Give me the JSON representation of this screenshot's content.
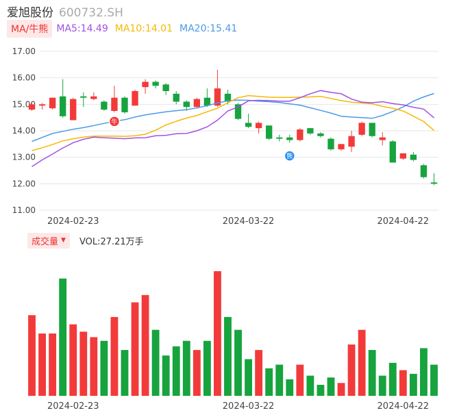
{
  "header": {
    "name": "爱旭股份",
    "code": "600732.SH"
  },
  "ma_bar": {
    "button_label": "MA/牛熊",
    "items": [
      {
        "label": "MA5:14.49",
        "color": "#a050e6"
      },
      {
        "label": "MA10:14.01",
        "color": "#f5b800"
      },
      {
        "label": "MA20:15.41",
        "color": "#4a9ae8"
      }
    ]
  },
  "volume_bar": {
    "button_label": "成交量",
    "caret": "▼",
    "value_text": "VOL:27.21万手"
  },
  "colors": {
    "up": "#f33a3a",
    "down": "#17a33e",
    "ma5": "#a050e6",
    "ma10": "#f5b800",
    "ma20": "#4a9ae8",
    "grid": "#e6e6e6"
  },
  "chart_data": [
    {
      "type": "candlestick",
      "ylim": [
        11.0,
        17.0
      ],
      "yticks": [
        "17.00",
        "16.00",
        "15.00",
        "14.00",
        "13.00",
        "12.00",
        "11.00"
      ],
      "xticks": [
        {
          "index": 4,
          "label": "2024-02-23"
        },
        {
          "index": 21,
          "label": "2024-03-22"
        },
        {
          "index": 36,
          "label": "2024-04-22"
        }
      ],
      "markers": [
        {
          "index": 8,
          "label": "牛",
          "color": "#f33a3a"
        },
        {
          "index": 25,
          "label": "熊",
          "color": "#2b8ff0"
        }
      ],
      "candles": [
        {
          "o": 14.8,
          "c": 15.0,
          "h": 15.05,
          "l": 14.75
        },
        {
          "o": 14.95,
          "c": 15.0,
          "h": 15.05,
          "l": 14.8
        },
        {
          "o": 14.85,
          "c": 15.25,
          "h": 15.25,
          "l": 14.8
        },
        {
          "o": 15.3,
          "c": 14.55,
          "h": 15.95,
          "l": 14.5
        },
        {
          "o": 14.4,
          "c": 15.2,
          "h": 15.25,
          "l": 14.4
        },
        {
          "o": 15.3,
          "c": 15.25,
          "h": 15.45,
          "l": 14.9
        },
        {
          "o": 15.2,
          "c": 15.3,
          "h": 15.45,
          "l": 15.15
        },
        {
          "o": 15.1,
          "c": 14.8,
          "h": 15.15,
          "l": 14.75
        },
        {
          "o": 14.75,
          "c": 15.25,
          "h": 15.7,
          "l": 14.7
        },
        {
          "o": 15.25,
          "c": 14.7,
          "h": 15.3,
          "l": 14.65
        },
        {
          "o": 14.95,
          "c": 15.5,
          "h": 15.55,
          "l": 14.95
        },
        {
          "o": 15.65,
          "c": 15.85,
          "h": 15.95,
          "l": 15.4
        },
        {
          "o": 15.85,
          "c": 15.7,
          "h": 15.9,
          "l": 15.6
        },
        {
          "o": 15.75,
          "c": 15.5,
          "h": 15.8,
          "l": 15.35
        },
        {
          "o": 15.4,
          "c": 15.1,
          "h": 15.5,
          "l": 15.0
        },
        {
          "o": 15.1,
          "c": 14.9,
          "h": 15.15,
          "l": 14.75
        },
        {
          "o": 14.9,
          "c": 15.2,
          "h": 15.25,
          "l": 14.85
        },
        {
          "o": 15.25,
          "c": 14.95,
          "h": 15.6,
          "l": 14.9
        },
        {
          "o": 14.95,
          "c": 15.6,
          "h": 16.3,
          "l": 14.9
        },
        {
          "o": 15.4,
          "c": 15.1,
          "h": 15.55,
          "l": 15.0
        },
        {
          "o": 15.0,
          "c": 14.45,
          "h": 15.05,
          "l": 14.4
        },
        {
          "o": 14.3,
          "c": 14.15,
          "h": 14.65,
          "l": 14.1
        },
        {
          "o": 14.1,
          "c": 14.3,
          "h": 14.35,
          "l": 13.9
        },
        {
          "o": 14.2,
          "c": 13.7,
          "h": 14.2,
          "l": 13.65
        },
        {
          "o": 13.75,
          "c": 13.7,
          "h": 13.85,
          "l": 13.6
        },
        {
          "o": 13.75,
          "c": 13.65,
          "h": 13.85,
          "l": 13.55
        },
        {
          "o": 13.65,
          "c": 14.05,
          "h": 14.1,
          "l": 13.6
        },
        {
          "o": 14.1,
          "c": 13.9,
          "h": 14.1,
          "l": 13.85
        },
        {
          "o": 13.9,
          "c": 13.8,
          "h": 13.95,
          "l": 13.75
        },
        {
          "o": 13.7,
          "c": 13.3,
          "h": 13.75,
          "l": 13.25
        },
        {
          "o": 13.3,
          "c": 13.5,
          "h": 13.5,
          "l": 13.25
        },
        {
          "o": 13.4,
          "c": 13.8,
          "h": 14.0,
          "l": 13.2
        },
        {
          "o": 13.85,
          "c": 14.3,
          "h": 14.35,
          "l": 13.8
        },
        {
          "o": 14.3,
          "c": 13.8,
          "h": 14.3,
          "l": 13.75
        },
        {
          "o": 13.65,
          "c": 13.75,
          "h": 13.95,
          "l": 13.45
        },
        {
          "o": 13.6,
          "c": 12.8,
          "h": 13.65,
          "l": 12.8
        },
        {
          "o": 12.95,
          "c": 13.15,
          "h": 13.15,
          "l": 12.9
        },
        {
          "o": 13.1,
          "c": 12.9,
          "h": 13.2,
          "l": 12.85
        },
        {
          "o": 12.7,
          "c": 12.25,
          "h": 12.75,
          "l": 12.2
        },
        {
          "o": 12.05,
          "c": 12.0,
          "h": 12.4,
          "l": 11.95
        }
      ],
      "ma5": [
        12.65,
        12.9,
        13.12,
        13.35,
        13.55,
        13.68,
        13.76,
        13.74,
        13.72,
        13.7,
        13.73,
        13.74,
        13.81,
        13.83,
        13.89,
        13.9,
        14.0,
        14.15,
        14.4,
        14.75,
        14.9,
        15.13,
        15.15,
        15.14,
        15.12,
        15.12,
        15.25,
        15.4,
        15.52,
        15.45,
        15.4,
        15.2,
        15.08,
        15.06,
        15.1,
        15.03,
        14.98,
        14.89,
        14.82,
        14.49
      ],
      "ma10": [
        13.25,
        13.36,
        13.48,
        13.62,
        13.7,
        13.76,
        13.8,
        13.8,
        13.8,
        13.79,
        13.81,
        13.87,
        14.02,
        14.22,
        14.36,
        14.48,
        14.58,
        14.72,
        14.85,
        15.06,
        15.25,
        15.33,
        15.3,
        15.27,
        15.26,
        15.26,
        15.27,
        15.28,
        15.3,
        15.22,
        15.14,
        15.08,
        15.05,
        15.02,
        14.92,
        14.85,
        14.75,
        14.55,
        14.35,
        14.01
      ],
      "ma20": [
        13.6,
        13.75,
        13.9,
        13.98,
        14.06,
        14.12,
        14.2,
        14.28,
        14.36,
        14.42,
        14.52,
        14.6,
        14.66,
        14.72,
        14.76,
        14.8,
        14.86,
        14.95,
        15.05,
        15.13,
        15.16,
        15.15,
        15.12,
        15.1,
        15.07,
        15.02,
        14.97,
        14.87,
        14.77,
        14.67,
        14.55,
        14.52,
        14.5,
        14.47,
        14.58,
        14.73,
        14.9,
        15.12,
        15.28,
        15.41
      ]
    },
    {
      "type": "bar",
      "title": "成交量",
      "values": [
        44,
        34,
        34,
        64,
        39,
        35,
        32,
        30,
        43,
        25,
        51,
        55,
        36,
        22,
        27,
        30,
        25,
        30,
        68,
        43,
        36,
        20,
        25,
        15,
        17,
        9,
        17,
        11,
        6,
        10,
        7,
        28,
        36,
        25,
        11,
        18,
        14,
        12,
        26,
        17
      ],
      "up": [
        true,
        true,
        true,
        false,
        true,
        true,
        true,
        false,
        true,
        false,
        true,
        true,
        false,
        false,
        false,
        false,
        true,
        false,
        true,
        false,
        false,
        false,
        true,
        false,
        false,
        false,
        true,
        false,
        false,
        false,
        true,
        true,
        true,
        false,
        false,
        false,
        true,
        false,
        false,
        false
      ]
    }
  ]
}
